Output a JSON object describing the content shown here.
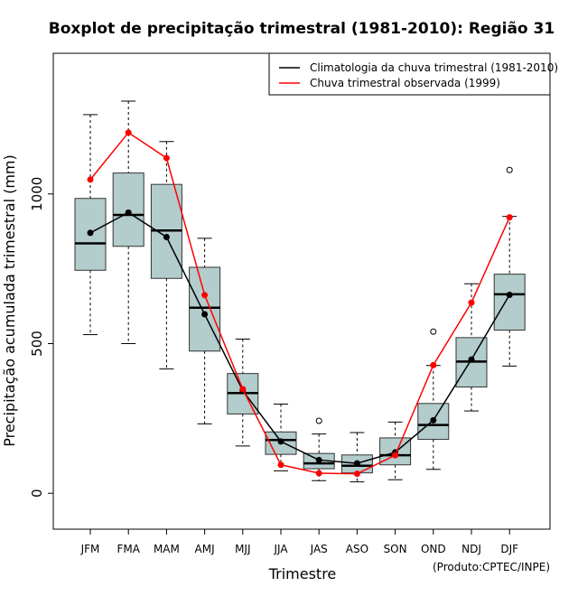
{
  "chart_data": {
    "type": "boxplot",
    "title": "Boxplot de precipitação trimestral (1981-2010): Região 31",
    "xlabel": "Trimestre",
    "ylabel": "Precipitação acumulada trimestral (mm)",
    "ylim": [
      -120,
      1470
    ],
    "yticks": [
      0,
      500,
      1000
    ],
    "ytick_labels": [
      "0",
      "500",
      "1000"
    ],
    "source_note": "(Produto:CPTEC/INPE)",
    "categories": [
      "JFM",
      "FMA",
      "MAM",
      "AMJ",
      "MJJ",
      "JJA",
      "JAS",
      "ASO",
      "SON",
      "OND",
      "NDJ",
      "DJF"
    ],
    "boxes": [
      {
        "whisker_low": 530,
        "q1": 745,
        "median": 835,
        "q3": 985,
        "whisker_high": 1265,
        "outliers": []
      },
      {
        "whisker_low": 500,
        "q1": 825,
        "median": 930,
        "q3": 1070,
        "whisker_high": 1310,
        "outliers": []
      },
      {
        "whisker_low": 415,
        "q1": 718,
        "median": 878,
        "q3": 1032,
        "whisker_high": 1175,
        "outliers": []
      },
      {
        "whisker_low": 232,
        "q1": 475,
        "median": 620,
        "q3": 755,
        "whisker_high": 852,
        "outliers": []
      },
      {
        "whisker_low": 158,
        "q1": 265,
        "median": 335,
        "q3": 400,
        "whisker_high": 515,
        "outliers": []
      },
      {
        "whisker_low": 75,
        "q1": 130,
        "median": 178,
        "q3": 205,
        "whisker_high": 298,
        "outliers": []
      },
      {
        "whisker_low": 42,
        "q1": 82,
        "median": 100,
        "q3": 133,
        "whisker_high": 198,
        "outliers": [
          242
        ]
      },
      {
        "whisker_low": 38,
        "q1": 68,
        "median": 92,
        "q3": 128,
        "whisker_high": 203,
        "outliers": []
      },
      {
        "whisker_low": 45,
        "q1": 95,
        "median": 127,
        "q3": 185,
        "whisker_high": 238,
        "outliers": []
      },
      {
        "whisker_low": 80,
        "q1": 180,
        "median": 228,
        "q3": 300,
        "whisker_high": 427,
        "outliers": [
          540
        ]
      },
      {
        "whisker_low": 275,
        "q1": 355,
        "median": 440,
        "q3": 520,
        "whisker_high": 700,
        "outliers": []
      },
      {
        "whisker_low": 425,
        "q1": 545,
        "median": 665,
        "q3": 732,
        "whisker_high": 925,
        "outliers": [
          1080
        ]
      }
    ],
    "series": [
      {
        "name": "Climatologia da chuva trimestral (1981-2010)",
        "color": "#000000",
        "values": [
          870,
          938,
          856,
          598,
          343,
          173,
          111,
          100,
          137,
          244,
          447,
          663
        ]
      },
      {
        "name": "Chuva trimestral observada (1999)",
        "color": "#ff0000",
        "values": [
          1048,
          1205,
          1120,
          662,
          348,
          95,
          67,
          65,
          127,
          428,
          637,
          922
        ]
      }
    ],
    "legend_position": "top-right",
    "box_fill": "#b3cccc"
  }
}
